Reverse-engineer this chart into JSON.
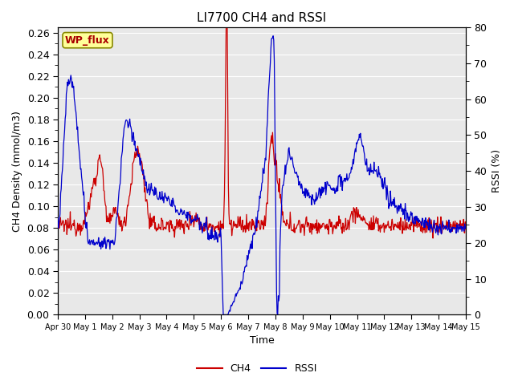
{
  "title": "LI7700 CH4 and RSSI",
  "ylabel_left": "CH4 Density (mmol/m3)",
  "ylabel_right": "RSSI (%)",
  "xlabel": "Time",
  "ylim_left": [
    0.0,
    0.265
  ],
  "ylim_right": [
    0,
    80
  ],
  "yticks_left": [
    0.0,
    0.02,
    0.04,
    0.06,
    0.08,
    0.1,
    0.12,
    0.14,
    0.16,
    0.18,
    0.2,
    0.22,
    0.24,
    0.26
  ],
  "yticks_right": [
    0,
    10,
    20,
    30,
    40,
    50,
    60,
    70,
    80
  ],
  "ch4_color": "#cc0000",
  "rssi_color": "#0000cc",
  "plot_bg_color": "#e8e8e8",
  "grid_color": "#ffffff",
  "legend_ch4": "CH4",
  "legend_rssi": "RSSI",
  "annotation_text": "WP_flux",
  "annotation_color": "#aa0000",
  "annotation_bg": "#ffff99",
  "annotation_border": "#888800",
  "xtick_labels": [
    "Apr 30",
    "May 1",
    "May 2",
    "May 3",
    "May 4",
    "May 5",
    "May 6",
    "May 7",
    "May 8",
    "May 9",
    "May 10",
    "May 11",
    "May 12",
    "May 13",
    "May 14",
    "May 15"
  ],
  "font_size": 9,
  "title_font_size": 11
}
